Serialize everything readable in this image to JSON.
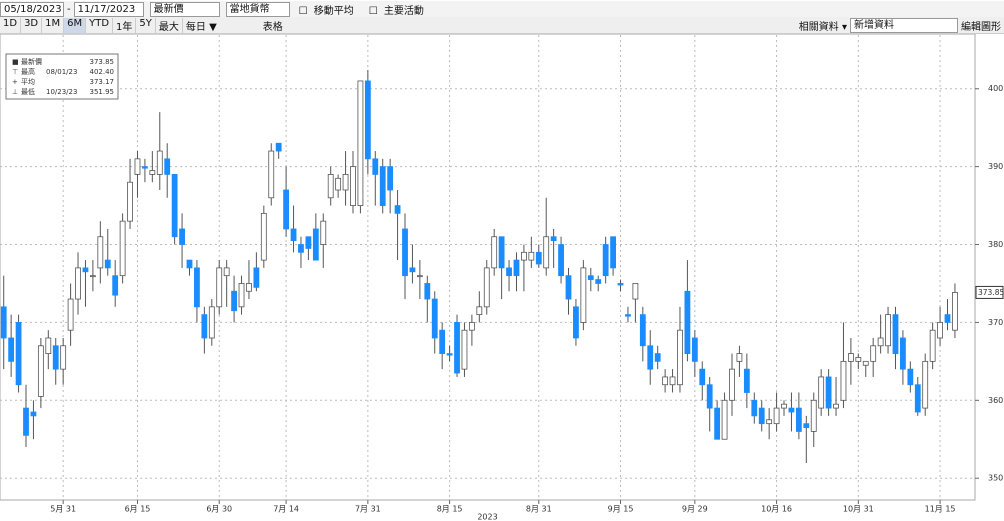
{
  "toolbar": {
    "start_date": "05/18/2023",
    "end_date": "11/17/2023",
    "field": "最新價",
    "currency": "當地貨幣",
    "moving_avg": "移動平均",
    "events": "主要活動",
    "periods": [
      "1D",
      "3D",
      "1M",
      "6M",
      "YTD",
      "1年",
      "5Y",
      "最大"
    ],
    "frequency": "每日 ▼",
    "table": "表格",
    "related": "相關資料 ▾",
    "add_data": "新增資料",
    "edit": "編輯圖形"
  },
  "chart_data": {
    "type": "candlestick",
    "up_color": "#ffffff",
    "down_color": "#1a8cff",
    "grid": true,
    "xlabel": "2023",
    "xlim": [
      -0.5,
      130.7
    ],
    "ylim": [
      347.2,
      406.9
    ],
    "yticks": [
      350,
      360,
      370,
      380,
      390,
      400
    ],
    "xticks": [
      {
        "value": 8,
        "label": "5月 31"
      },
      {
        "value": 18,
        "label": "6月 15"
      },
      {
        "value": 29,
        "label": "6月 30"
      },
      {
        "value": 38,
        "label": "7月 14"
      },
      {
        "value": 49,
        "label": "7月 31"
      },
      {
        "value": 60,
        "label": "8月 15"
      },
      {
        "value": 72,
        "label": "8月 31"
      },
      {
        "value": 83,
        "label": "9月 15"
      },
      {
        "value": 93,
        "label": "9月 29"
      },
      {
        "value": 104,
        "label": "10月 16"
      },
      {
        "value": 115,
        "label": "10月 31"
      },
      {
        "value": 126,
        "label": "11月 15"
      }
    ],
    "last_label": "373.85",
    "legend": [
      {
        "label": "最新價",
        "value": "373.85"
      },
      {
        "label": "最高",
        "date": "08/01/23",
        "value": "402.40"
      },
      {
        "label": "平均",
        "value": "373.17"
      },
      {
        "label": "最低",
        "date": "10/23/23",
        "value": "351.95"
      }
    ],
    "ohlc": [
      [
        372,
        376,
        364,
        368
      ],
      [
        368,
        371,
        363,
        365
      ],
      [
        370,
        371,
        361,
        362
      ],
      [
        359,
        362,
        354,
        355.5
      ],
      [
        358.5,
        360,
        355,
        358
      ],
      [
        360.5,
        368,
        359,
        367
      ],
      [
        366,
        369,
        364,
        368
      ],
      [
        367,
        368,
        362,
        364
      ],
      [
        364,
        368,
        362,
        367
      ],
      [
        369,
        375,
        367,
        373
      ],
      [
        373,
        379,
        371,
        377
      ],
      [
        377,
        378,
        372,
        376.5
      ],
      [
        376,
        378,
        374,
        376
      ],
      [
        377,
        383,
        375,
        381
      ],
      [
        378,
        382,
        376,
        377
      ],
      [
        376,
        378,
        372,
        373.5
      ],
      [
        376,
        384,
        375,
        383
      ],
      [
        383,
        391,
        382,
        388
      ],
      [
        389,
        392,
        386,
        391
      ],
      [
        390,
        391,
        388,
        389.8
      ],
      [
        389,
        392,
        388,
        389.5
      ],
      [
        389,
        397,
        387,
        392
      ],
      [
        391,
        393,
        386,
        389
      ],
      [
        389,
        389,
        380,
        381
      ],
      [
        382,
        384,
        377,
        380
      ],
      [
        378,
        378,
        376,
        377
      ],
      [
        377,
        378,
        370,
        372
      ],
      [
        371,
        372,
        366,
        368
      ],
      [
        368,
        373,
        367,
        372
      ],
      [
        372,
        378,
        371,
        377
      ],
      [
        376,
        378,
        372,
        377
      ],
      [
        374,
        376,
        370,
        371.5
      ],
      [
        372,
        376,
        371,
        375
      ],
      [
        374,
        378,
        373,
        375
      ],
      [
        377,
        379,
        374,
        374.5
      ],
      [
        378,
        385,
        377,
        384
      ],
      [
        386,
        393,
        385,
        392
      ],
      [
        393,
        393,
        391,
        392
      ],
      [
        387,
        390,
        381,
        382
      ],
      [
        382,
        385,
        379,
        380.5
      ],
      [
        380,
        381,
        377,
        379
      ],
      [
        381,
        381,
        378,
        379.5
      ],
      [
        382,
        384,
        378,
        378
      ],
      [
        380,
        384,
        377,
        383
      ],
      [
        386,
        390,
        385,
        389
      ],
      [
        387,
        389,
        386,
        388.5
      ],
      [
        387,
        392,
        385,
        389
      ],
      [
        385,
        392,
        384,
        390
      ],
      [
        385,
        401,
        384,
        401
      ],
      [
        401,
        402.4,
        389,
        391
      ],
      [
        391,
        392,
        385,
        389
      ],
      [
        390,
        391,
        384,
        385
      ],
      [
        390,
        391,
        384,
        387
      ],
      [
        385,
        387,
        378,
        384
      ],
      [
        382,
        384,
        373,
        376
      ],
      [
        377,
        380,
        375,
        376.5
      ],
      [
        376,
        378,
        373,
        376
      ],
      [
        375,
        376,
        370,
        373
      ],
      [
        373,
        374,
        366,
        368
      ],
      [
        369,
        370,
        364,
        366
      ],
      [
        366,
        367,
        365,
        365.8
      ],
      [
        370,
        371,
        363,
        363.5
      ],
      [
        364,
        370,
        363,
        369
      ],
      [
        369,
        371,
        367,
        370
      ],
      [
        371,
        374,
        370,
        372
      ],
      [
        372,
        378,
        371,
        377
      ],
      [
        377,
        382,
        376,
        381
      ],
      [
        381,
        381,
        373,
        377
      ],
      [
        377,
        378,
        374,
        376
      ],
      [
        378,
        379,
        374,
        376
      ],
      [
        378,
        380,
        374,
        379
      ],
      [
        378,
        381,
        377,
        379
      ],
      [
        379,
        380,
        377,
        377.5
      ],
      [
        377,
        386,
        376,
        381
      ],
      [
        381,
        382,
        377,
        380.5
      ],
      [
        380,
        381,
        375,
        376
      ],
      [
        376,
        377,
        371,
        373
      ],
      [
        372,
        373,
        367,
        368
      ],
      [
        370,
        378,
        369,
        377
      ],
      [
        376,
        377,
        374,
        375.5
      ],
      [
        375.5,
        376,
        374,
        375
      ],
      [
        380,
        381,
        375,
        376
      ],
      [
        381,
        381,
        376,
        377
      ],
      [
        375,
        375.5,
        374,
        374.8
      ],
      [
        371,
        372,
        370,
        370.8
      ],
      [
        373,
        375,
        370,
        375
      ],
      [
        371,
        372,
        365,
        367
      ],
      [
        367,
        369,
        362,
        364
      ],
      [
        366,
        367,
        364,
        365
      ],
      [
        362,
        364,
        361,
        363
      ],
      [
        362,
        364,
        361,
        363
      ],
      [
        362,
        372,
        361,
        369
      ],
      [
        374,
        378,
        365,
        366
      ],
      [
        368,
        369,
        363,
        365
      ],
      [
        364,
        365,
        360,
        362
      ],
      [
        362,
        363,
        356,
        359
      ],
      [
        359,
        360,
        355,
        355
      ],
      [
        355,
        361,
        355,
        360
      ],
      [
        360,
        366,
        358,
        364
      ],
      [
        365,
        367,
        363,
        366
      ],
      [
        364,
        366,
        359,
        361
      ],
      [
        360,
        361,
        357,
        358
      ],
      [
        359,
        360,
        356,
        357
      ],
      [
        357,
        359,
        355,
        357.5
      ],
      [
        357,
        361,
        356,
        359
      ],
      [
        359,
        360,
        358,
        359.5
      ],
      [
        359,
        361,
        356,
        358.5
      ],
      [
        359,
        361,
        355,
        356
      ],
      [
        357,
        358,
        351.95,
        356.5
      ],
      [
        356,
        361,
        354,
        360
      ],
      [
        359,
        364,
        358,
        363
      ],
      [
        363,
        364,
        358,
        359
      ],
      [
        359,
        363,
        358,
        359.5
      ],
      [
        360,
        370,
        359,
        365
      ],
      [
        365,
        368,
        362,
        366
      ],
      [
        365,
        366,
        364,
        365.5
      ],
      [
        364.5,
        365,
        363,
        365
      ],
      [
        365,
        368,
        363,
        367
      ],
      [
        367,
        371,
        366,
        368
      ],
      [
        367,
        372,
        366,
        371
      ],
      [
        371,
        372,
        364,
        366
      ],
      [
        368,
        369,
        362,
        364
      ],
      [
        364,
        365,
        361,
        362
      ],
      [
        362,
        363,
        358,
        358.5
      ],
      [
        359,
        366,
        358,
        365
      ],
      [
        365,
        370,
        364,
        369
      ],
      [
        368,
        372,
        367,
        370
      ],
      [
        371,
        373,
        369,
        370
      ],
      [
        369,
        375,
        368,
        373.85
      ]
    ]
  }
}
